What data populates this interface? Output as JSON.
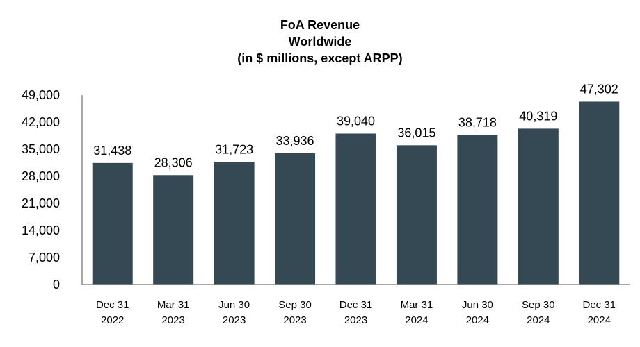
{
  "chart_data": {
    "type": "bar",
    "title": "FoA Revenue",
    "subtitle": "Worldwide",
    "subtitle2": "(in $ millions, except ARPP)",
    "xlabel": "",
    "ylabel": "",
    "categories": [
      [
        "Dec 31",
        "2022"
      ],
      [
        "Mar 31",
        "2023"
      ],
      [
        "Jun 30",
        "2023"
      ],
      [
        "Sep 30",
        "2023"
      ],
      [
        "Dec 31",
        "2023"
      ],
      [
        "Mar 31",
        "2024"
      ],
      [
        "Jun 30",
        "2024"
      ],
      [
        "Sep 30",
        "2024"
      ],
      [
        "Dec 31",
        "2024"
      ]
    ],
    "values": [
      31438,
      28306,
      31723,
      33936,
      39040,
      36015,
      38718,
      40319,
      47302
    ],
    "value_labels": [
      "31,438",
      "28,306",
      "31,723",
      "33,936",
      "39,040",
      "36,015",
      "38,718",
      "40,319",
      "47,302"
    ],
    "yticks": [
      0,
      7000,
      14000,
      21000,
      28000,
      35000,
      42000,
      49000
    ],
    "ytick_labels": [
      "0",
      "7,000",
      "14,000",
      "21,000",
      "28,000",
      "35,000",
      "42,000",
      "49,000"
    ],
    "ylim": [
      0,
      49000
    ],
    "grid": false,
    "bar_color": "#354955",
    "axis_color": "#8c8c8c"
  }
}
